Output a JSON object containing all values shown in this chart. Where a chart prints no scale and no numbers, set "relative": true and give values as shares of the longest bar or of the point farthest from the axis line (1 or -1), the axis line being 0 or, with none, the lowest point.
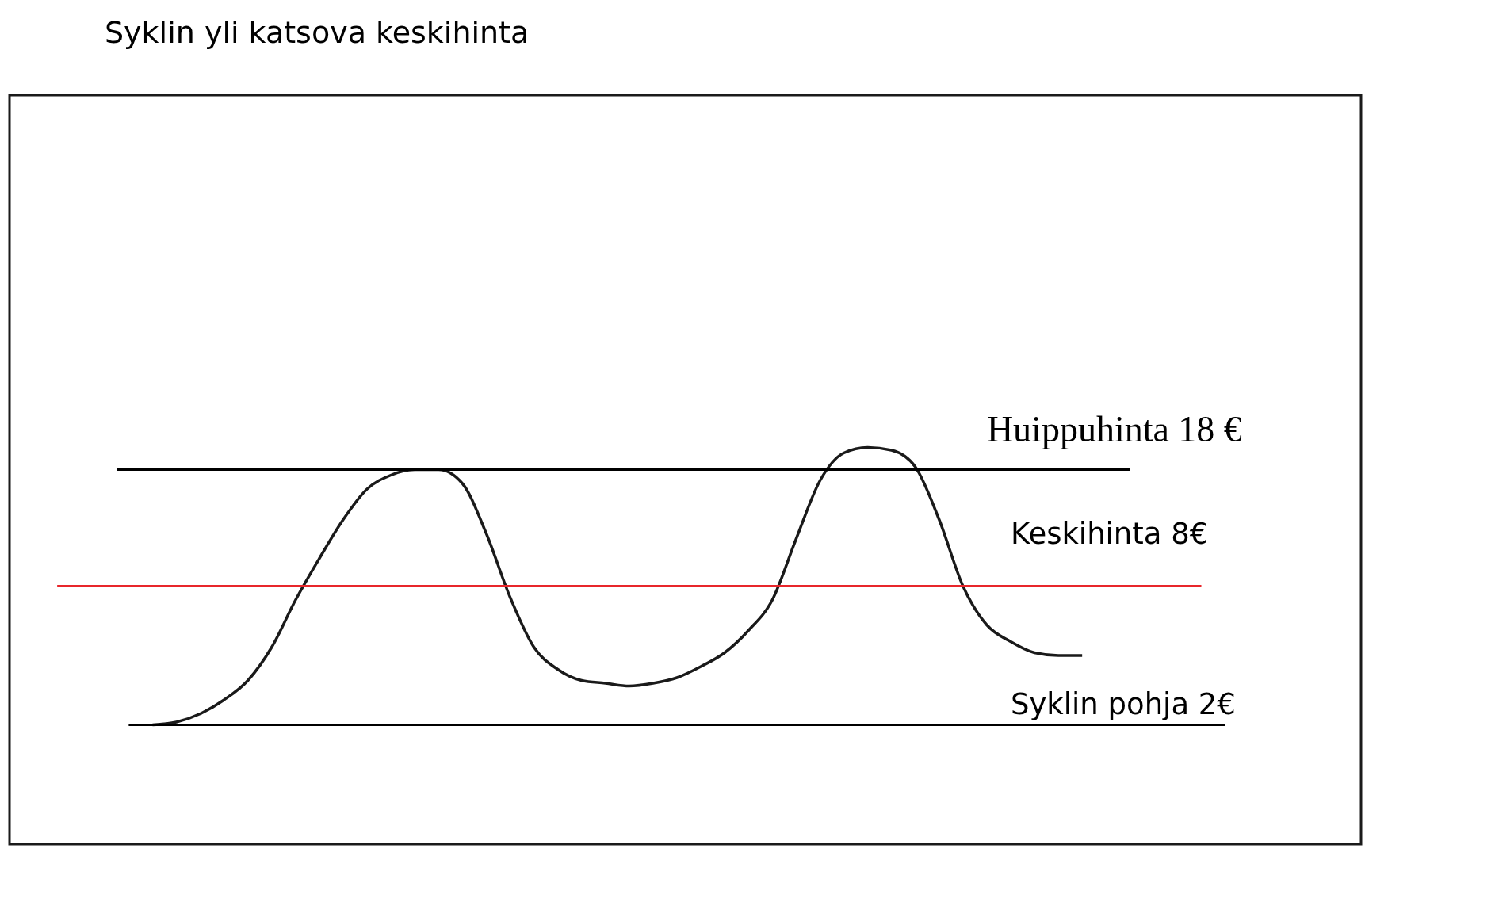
{
  "chart_data": {
    "type": "line",
    "title": "Syklin yli katsova keskihinta",
    "relative": true,
    "marker": "none",
    "line_style": "solid",
    "grid": false,
    "tick_labels": false,
    "categories": [
      null,
      null,
      null,
      null,
      null,
      null,
      null,
      null,
      null,
      null,
      null,
      null,
      null,
      null,
      null,
      null,
      null,
      null,
      null,
      null,
      null,
      null,
      null,
      null,
      null,
      null,
      null,
      null,
      null,
      null,
      null,
      null,
      null,
      null,
      null,
      null,
      null,
      null,
      null,
      null
    ],
    "series": [
      {
        "color": "#1a1a1a",
        "values": [
          0,
          0.01,
          0.04,
          0.09,
          0.16,
          0.28,
          0.45,
          0.6,
          0.74,
          0.85,
          0.9,
          0.92,
          0.92,
          0.87,
          0.69,
          0.46,
          0.28,
          0.2,
          0.16,
          0.15,
          0.14,
          0.15,
          0.17,
          0.21,
          0.26,
          0.34,
          0.45,
          0.67,
          0.88,
          0.98,
          1,
          0.99,
          0.93,
          0.74,
          0.5,
          0.36,
          0.3,
          0.26,
          0.25,
          0.25
        ]
      }
    ],
    "ref_lines": [
      {
        "axis": "y",
        "value": 0.92,
        "label": "Huippuhinta 18 €",
        "color": "#000000"
      },
      {
        "axis": "y",
        "value": 0.5,
        "label": "Keskihinta 8€",
        "color": "#e8262b"
      },
      {
        "axis": "y",
        "value": 0,
        "label": "Syklin pohja 2€",
        "color": "#000000"
      }
    ]
  }
}
